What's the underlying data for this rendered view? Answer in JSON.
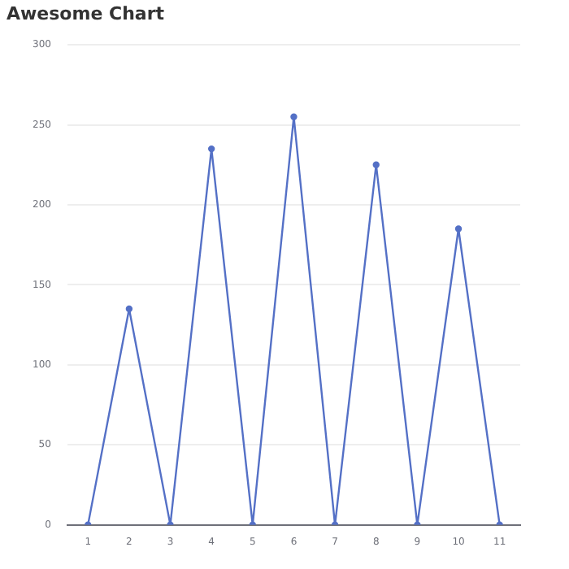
{
  "chart_data": {
    "type": "line",
    "title": "Awesome Chart",
    "categories": [
      "1",
      "2",
      "3",
      "4",
      "5",
      "6",
      "7",
      "8",
      "9",
      "10",
      "11"
    ],
    "series": [
      {
        "color": "#5470c6",
        "values": [
          0,
          135,
          0,
          235,
          0,
          255,
          0,
          225,
          0,
          185,
          0
        ]
      }
    ],
    "ylim": [
      0,
      300
    ],
    "yticks": [
      0,
      50,
      100,
      150,
      200,
      250,
      300
    ],
    "grid": "y",
    "legend": false,
    "marker": "circle",
    "line_style": "solid"
  }
}
